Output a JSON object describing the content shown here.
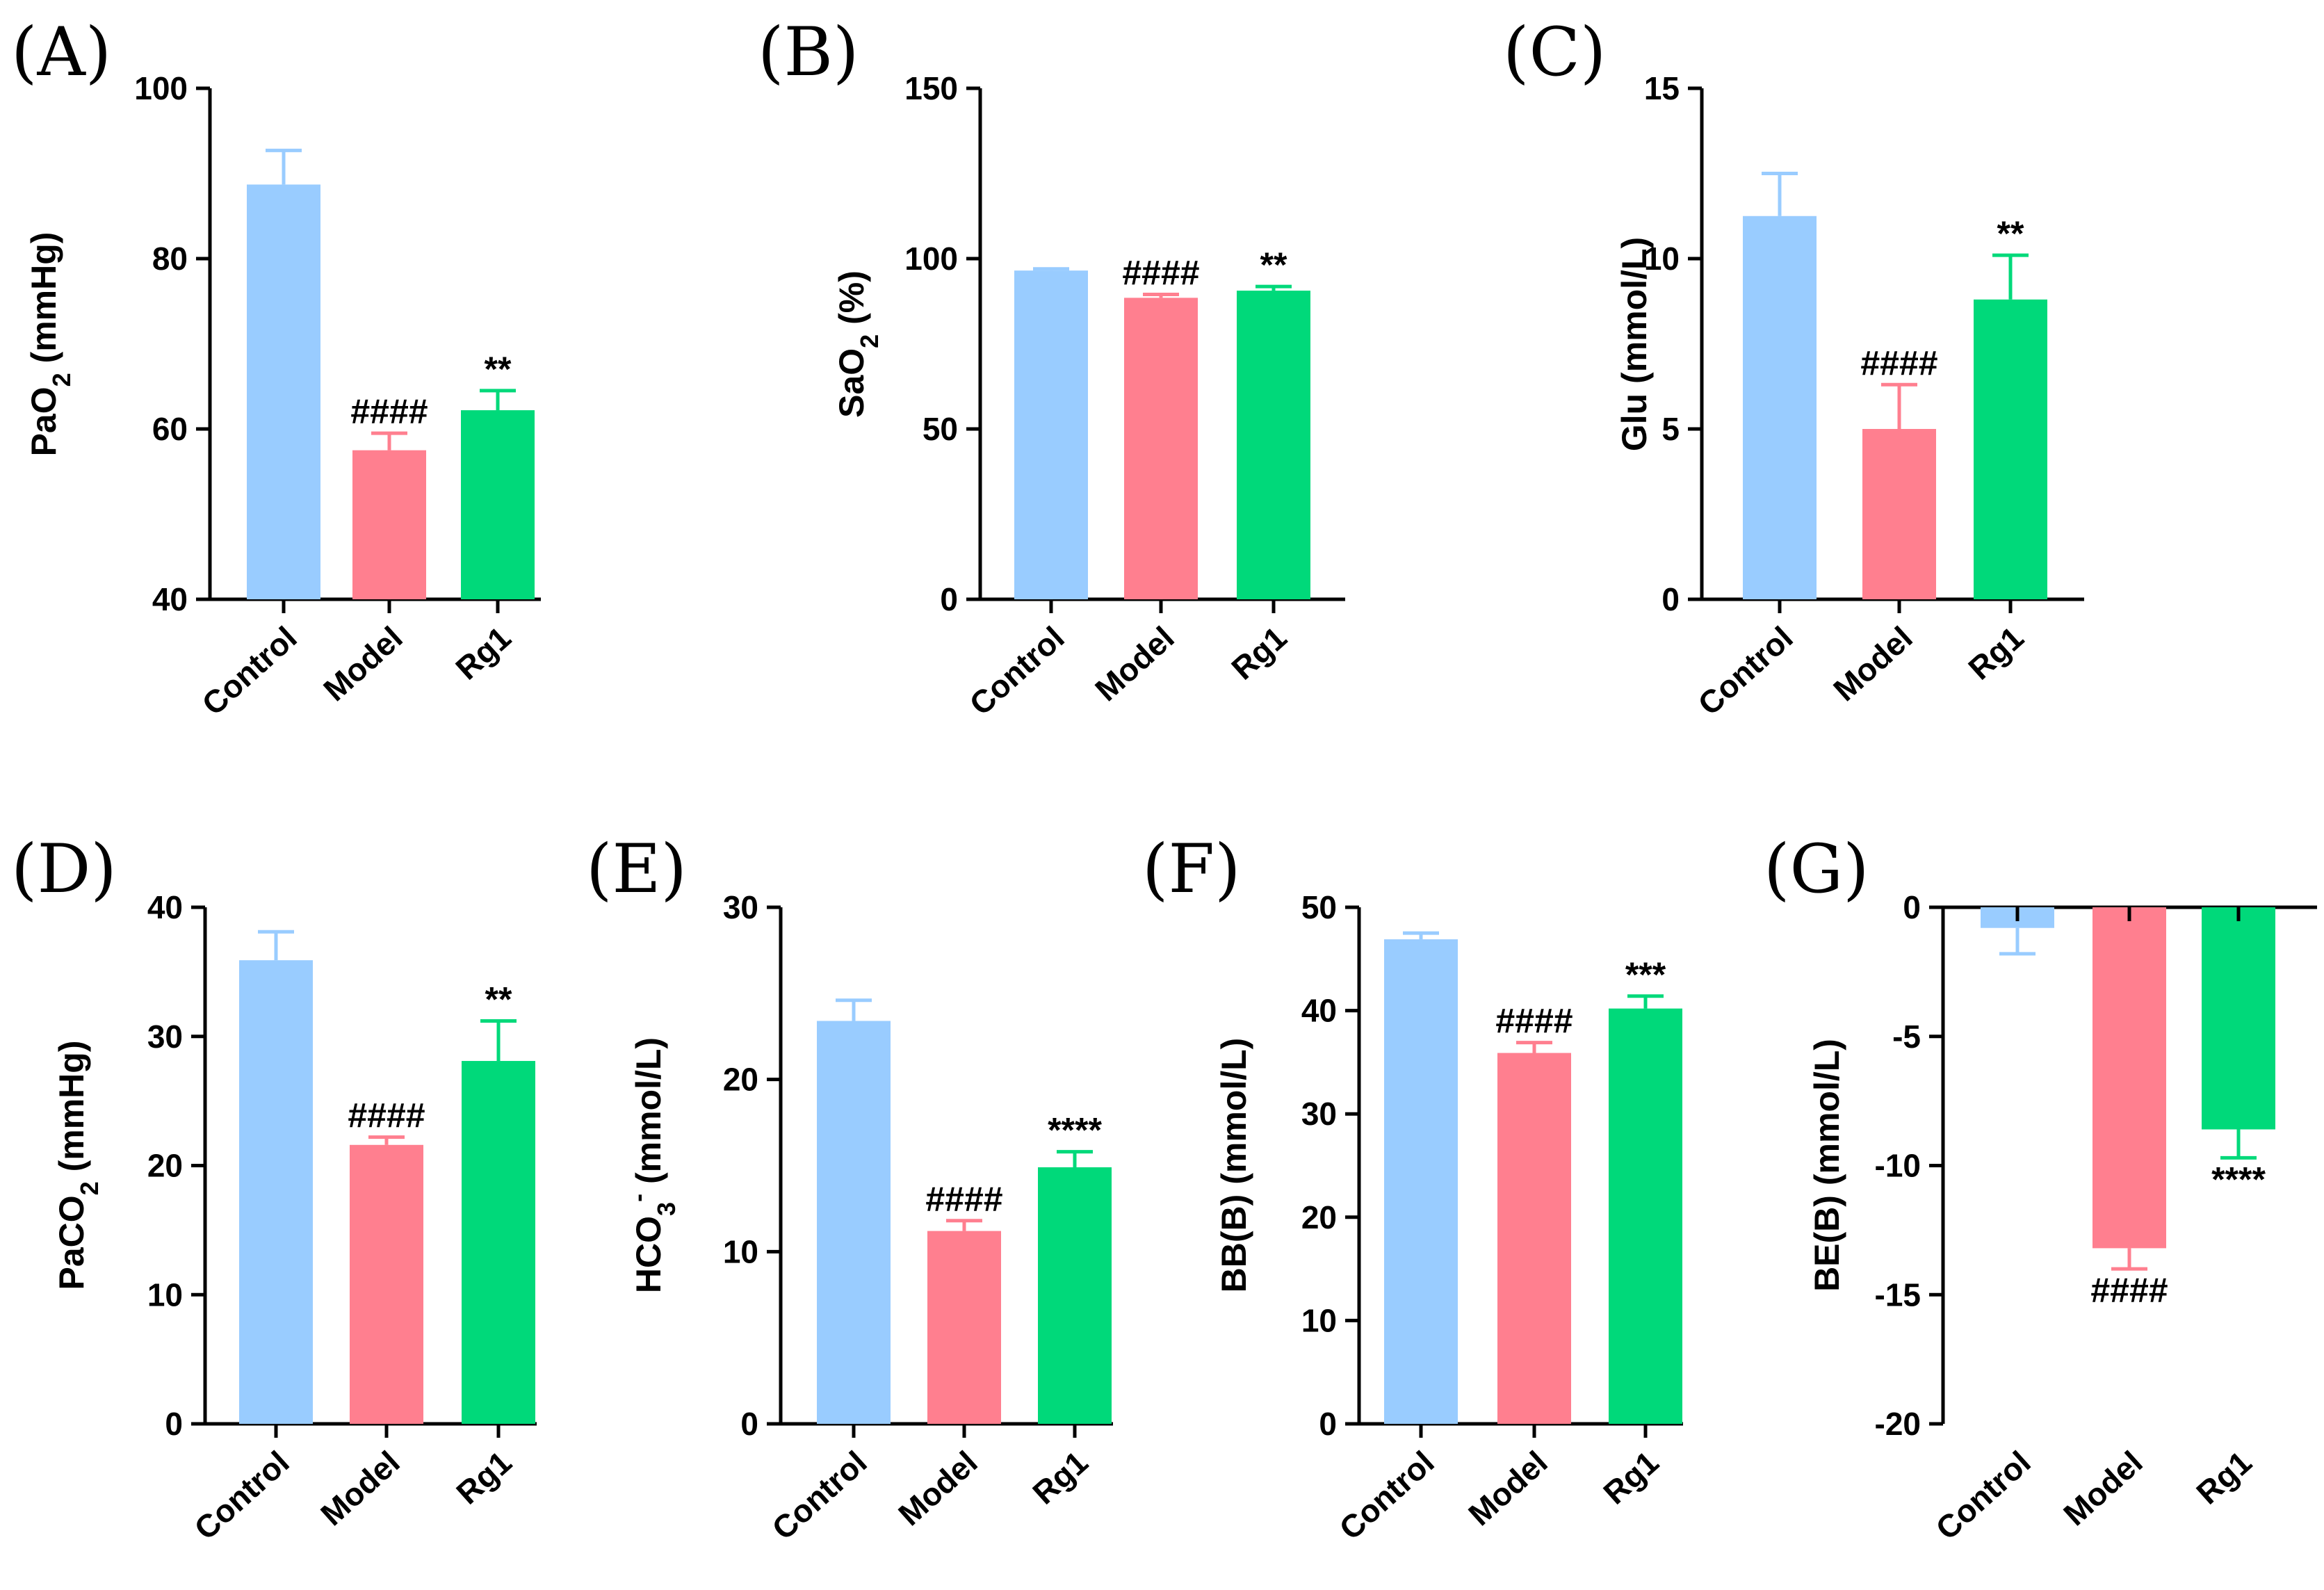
{
  "categories": [
    "Control",
    "Model",
    "Rg1"
  ],
  "colors": {
    "Control": "#99ccff",
    "Model": "#ff7f8f",
    "Rg1": "#00d97a"
  },
  "chart_data": [
    {
      "panel": "(A)",
      "type": "bar",
      "ylabel": {
        "main": "PaO",
        "sub": "2",
        "sup": "",
        "tail": " (mmHg)"
      },
      "ylim": [
        40,
        100
      ],
      "ticks": [
        40,
        60,
        80,
        100
      ],
      "categories": [
        "Control",
        "Model",
        "Rg1"
      ],
      "values": [
        88.7,
        57.5,
        62.2
      ],
      "errors": [
        4.0,
        2.0,
        2.3
      ],
      "sig": [
        "",
        "####",
        "**"
      ]
    },
    {
      "panel": "(B)",
      "type": "bar",
      "ylabel": {
        "main": "SaO",
        "sub": "2",
        "sup": "",
        "tail": " (%)"
      },
      "ylim": [
        0,
        150
      ],
      "ticks": [
        0,
        50,
        100,
        150
      ],
      "categories": [
        "Control",
        "Model",
        "Rg1"
      ],
      "values": [
        96.5,
        88.5,
        90.6
      ],
      "errors": [
        0.5,
        1.0,
        1.2
      ],
      "sig": [
        "",
        "####",
        "**"
      ]
    },
    {
      "panel": "(C)",
      "type": "bar",
      "ylabel": {
        "main": "Glu (mmol/L)",
        "sub": "",
        "sup": "",
        "tail": ""
      },
      "ylim": [
        0,
        15
      ],
      "ticks": [
        0,
        5,
        10,
        15
      ],
      "categories": [
        "Control",
        "Model",
        "Rg1"
      ],
      "values": [
        11.25,
        5.0,
        8.8
      ],
      "errors": [
        1.25,
        1.3,
        1.3
      ],
      "sig": [
        "",
        "####",
        "**"
      ]
    },
    {
      "panel": "(D)",
      "type": "bar",
      "ylabel": {
        "main": "PaCO",
        "sub": "2",
        "sup": "",
        "tail": " (mmHg)"
      },
      "ylim": [
        0,
        40
      ],
      "ticks": [
        0,
        10,
        20,
        30,
        40
      ],
      "categories": [
        "Control",
        "Model",
        "Rg1"
      ],
      "values": [
        35.9,
        21.6,
        28.1
      ],
      "errors": [
        2.2,
        0.6,
        3.1
      ],
      "sig": [
        "",
        "####",
        "**"
      ]
    },
    {
      "panel": "(E)",
      "type": "bar",
      "ylabel": {
        "main": "HCO",
        "sub": "3",
        "sup": "-",
        "tail": " (mmol/L)"
      },
      "ylim": [
        0,
        30
      ],
      "ticks": [
        0,
        10,
        20,
        30
      ],
      "categories": [
        "Control",
        "Model",
        "Rg1"
      ],
      "values": [
        23.4,
        11.2,
        14.9
      ],
      "errors": [
        1.2,
        0.6,
        0.9
      ],
      "sig": [
        "",
        "####",
        "****"
      ]
    },
    {
      "panel": "(F)",
      "type": "bar",
      "ylabel": {
        "main": "BB(B) (mmol/L)",
        "sub": "",
        "sup": "",
        "tail": ""
      },
      "ylim": [
        0,
        50
      ],
      "ticks": [
        0,
        10,
        20,
        30,
        40,
        50
      ],
      "categories": [
        "Control",
        "Model",
        "Rg1"
      ],
      "values": [
        46.9,
        35.9,
        40.2
      ],
      "errors": [
        0.6,
        1.0,
        1.2
      ],
      "sig": [
        "",
        "####",
        "***"
      ]
    },
    {
      "panel": "(G)",
      "type": "bar",
      "ylabel": {
        "main": "BE(B) (mmol/L)",
        "sub": "",
        "sup": "",
        "tail": ""
      },
      "ylim": [
        -20,
        0
      ],
      "ticks": [
        -20,
        -15,
        -10,
        -5,
        0
      ],
      "categories": [
        "Control",
        "Model",
        "Rg1"
      ],
      "values": [
        -0.8,
        -13.2,
        -8.6
      ],
      "errors": [
        1.0,
        0.8,
        1.1
      ],
      "sig": [
        "",
        "####",
        "****"
      ]
    }
  ]
}
